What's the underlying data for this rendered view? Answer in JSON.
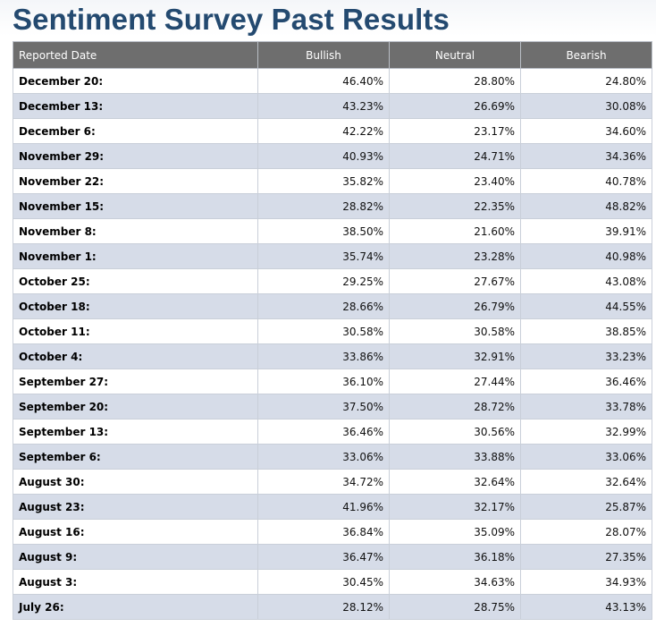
{
  "page": {
    "title": "Sentiment Survey Past Results"
  },
  "table": {
    "headers": {
      "date": "Reported Date",
      "bullish": "Bullish",
      "neutral": "Neutral",
      "bearish": "Bearish"
    },
    "rows": [
      {
        "date": "December 20:",
        "bullish": "46.40%",
        "neutral": "28.80%",
        "bearish": "24.80%"
      },
      {
        "date": "December 13:",
        "bullish": "43.23%",
        "neutral": "26.69%",
        "bearish": "30.08%"
      },
      {
        "date": "December 6:",
        "bullish": "42.22%",
        "neutral": "23.17%",
        "bearish": "34.60%"
      },
      {
        "date": "November 29:",
        "bullish": "40.93%",
        "neutral": "24.71%",
        "bearish": "34.36%"
      },
      {
        "date": "November 22:",
        "bullish": "35.82%",
        "neutral": "23.40%",
        "bearish": "40.78%"
      },
      {
        "date": "November 15:",
        "bullish": "28.82%",
        "neutral": "22.35%",
        "bearish": "48.82%"
      },
      {
        "date": "November 8:",
        "bullish": "38.50%",
        "neutral": "21.60%",
        "bearish": "39.91%"
      },
      {
        "date": "November 1:",
        "bullish": "35.74%",
        "neutral": "23.28%",
        "bearish": "40.98%"
      },
      {
        "date": "October 25:",
        "bullish": "29.25%",
        "neutral": "27.67%",
        "bearish": "43.08%"
      },
      {
        "date": "October 18:",
        "bullish": "28.66%",
        "neutral": "26.79%",
        "bearish": "44.55%"
      },
      {
        "date": "October 11:",
        "bullish": "30.58%",
        "neutral": "30.58%",
        "bearish": "38.85%"
      },
      {
        "date": "October 4:",
        "bullish": "33.86%",
        "neutral": "32.91%",
        "bearish": "33.23%"
      },
      {
        "date": "September 27:",
        "bullish": "36.10%",
        "neutral": "27.44%",
        "bearish": "36.46%"
      },
      {
        "date": "September 20:",
        "bullish": "37.50%",
        "neutral": "28.72%",
        "bearish": "33.78%"
      },
      {
        "date": "September 13:",
        "bullish": "36.46%",
        "neutral": "30.56%",
        "bearish": "32.99%"
      },
      {
        "date": "September 6:",
        "bullish": "33.06%",
        "neutral": "33.88%",
        "bearish": "33.06%"
      },
      {
        "date": "August 30:",
        "bullish": "34.72%",
        "neutral": "32.64%",
        "bearish": "32.64%"
      },
      {
        "date": "August 23:",
        "bullish": "41.96%",
        "neutral": "32.17%",
        "bearish": "25.87%"
      },
      {
        "date": "August 16:",
        "bullish": "36.84%",
        "neutral": "35.09%",
        "bearish": "28.07%"
      },
      {
        "date": "August 9:",
        "bullish": "36.47%",
        "neutral": "36.18%",
        "bearish": "27.35%"
      },
      {
        "date": "August 3:",
        "bullish": "30.45%",
        "neutral": "34.63%",
        "bearish": "34.93%"
      },
      {
        "date": "July 26:",
        "bullish": "28.12%",
        "neutral": "28.75%",
        "bearish": "43.13%"
      }
    ]
  },
  "colors": {
    "title": "#244a70",
    "header_bg": "#6e6e6e",
    "header_text": "#ffffff",
    "row_alt_bg": "#d6dce8",
    "row_bg": "#ffffff",
    "grid": "#c9cfd9"
  }
}
